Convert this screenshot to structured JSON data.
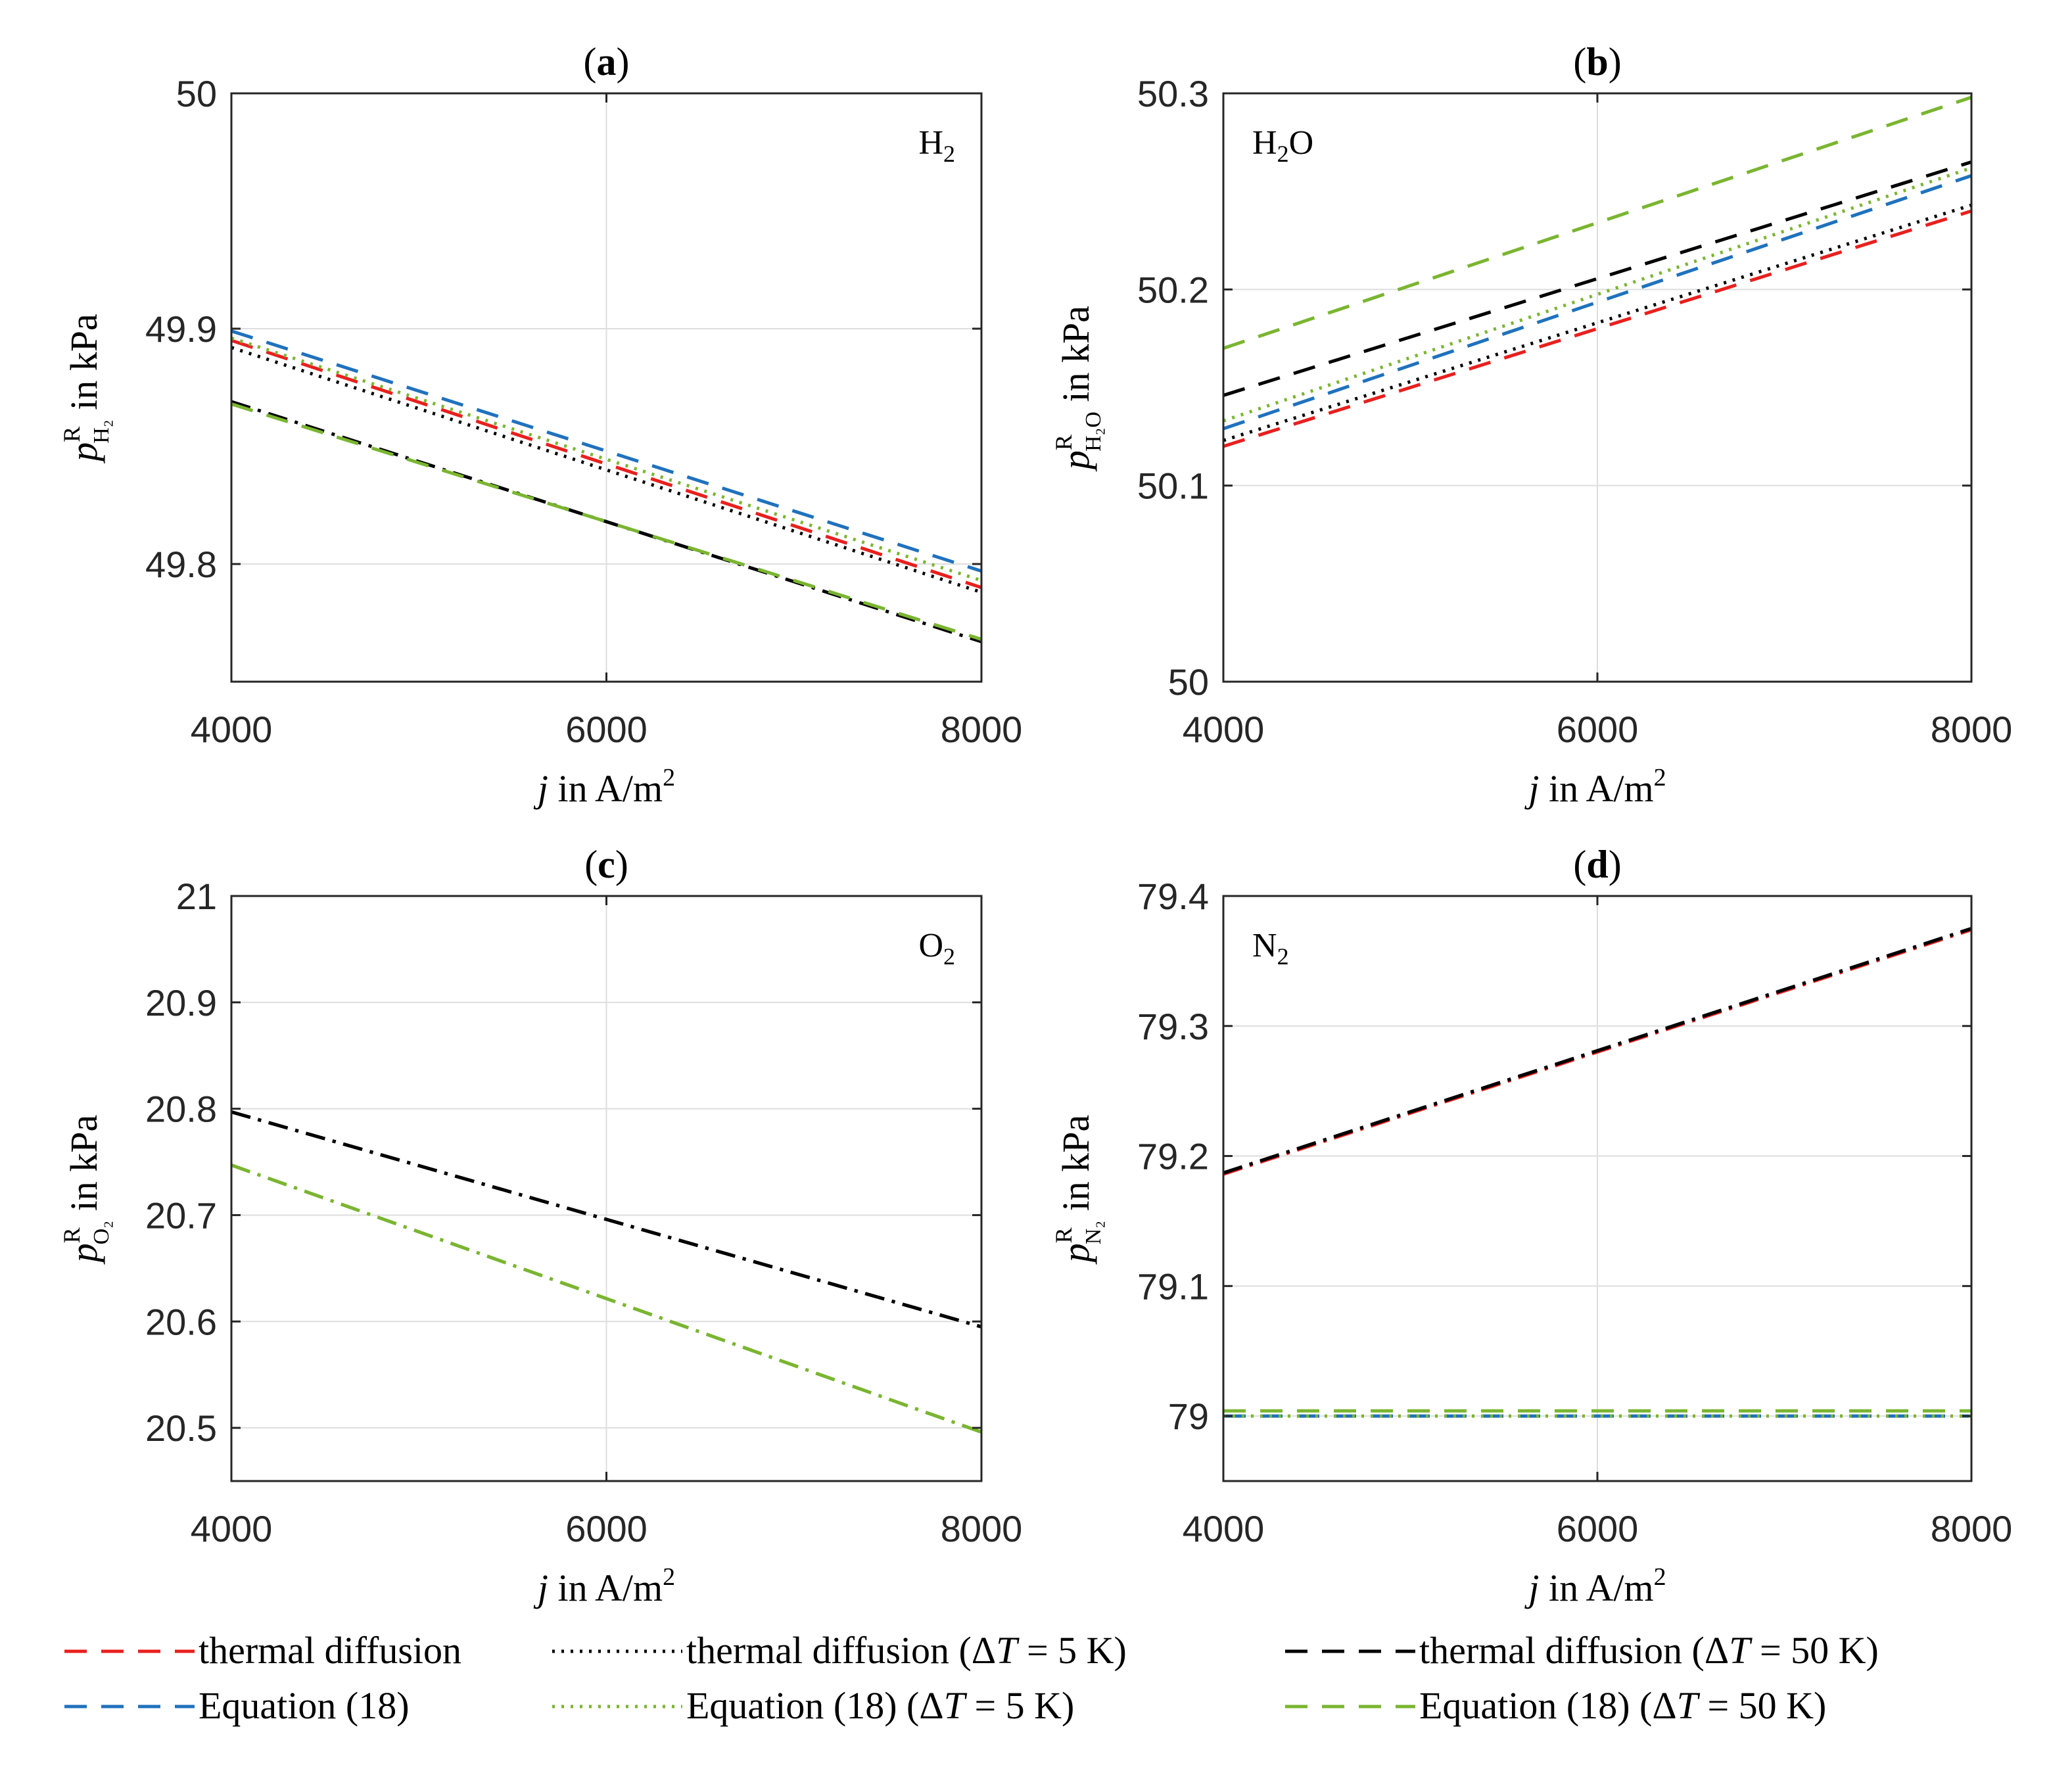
{
  "figure": {
    "colors": {
      "thermal_diffusion": "#e8201e",
      "equation18": "#1f72bd",
      "thermal_5K": "#000000",
      "eq18_5K": "#7ab530",
      "thermal_50K": "#000000",
      "eq18_50K": "#7ab530"
    }
  },
  "chart_data": [
    {
      "id": "a",
      "type": "line",
      "panel_label": "a",
      "species_label": "H",
      "species_subscript": "2",
      "species_suffix": "",
      "xlabel_var": "j",
      "xlabel_text": " in A/m",
      "xlabel_sup": "2",
      "ylabel_var": "p",
      "ylabel_sup": "R",
      "ylabel_sub": "H₂",
      "ylabel_text": " in kPa",
      "xlim": [
        4000,
        8000
      ],
      "ylim": [
        49.75,
        50.0
      ],
      "xticks": [
        4000,
        6000,
        8000
      ],
      "xtick_labels": [
        "4000",
        "6000",
        "8000"
      ],
      "yticks": [
        49.8,
        49.9,
        50.0
      ],
      "ytick_labels": [
        "49.8",
        "49.9",
        "50"
      ],
      "series": [
        {
          "key": "thermal_diffusion",
          "name": "thermal diffusion",
          "style": "dash",
          "x": [
            4000,
            8000
          ],
          "y": [
            49.895,
            49.79
          ]
        },
        {
          "key": "equation18",
          "name": "Equation (18)",
          "style": "dash",
          "x": [
            4000,
            8000
          ],
          "y": [
            49.899,
            49.797
          ]
        },
        {
          "key": "thermal_5K",
          "name": "thermal diffusion (ΔT = 5 K)",
          "style": "dot",
          "x": [
            4000,
            8000
          ],
          "y": [
            49.892,
            49.788
          ]
        },
        {
          "key": "eq18_5K",
          "name": "Equation (18) (ΔT = 5 K)",
          "style": "dot",
          "x": [
            4000,
            8000
          ],
          "y": [
            49.896,
            49.793
          ]
        },
        {
          "key": "thermal_50K",
          "name": "thermal diffusion (ΔT = 50 K)",
          "style": "dashdot",
          "x": [
            4000,
            8000
          ],
          "y": [
            49.869,
            49.767
          ]
        },
        {
          "key": "eq18_50K",
          "name": "Equation (18) (ΔT = 50 K)",
          "style": "dash",
          "x": [
            4000,
            8000
          ],
          "y": [
            49.868,
            49.768
          ]
        }
      ]
    },
    {
      "id": "b",
      "type": "line",
      "panel_label": "b",
      "species_label": "H",
      "species_subscript": "2",
      "species_suffix": "O",
      "xlabel_var": "j",
      "xlabel_text": " in A/m",
      "xlabel_sup": "2",
      "ylabel_var": "p",
      "ylabel_sup": "R",
      "ylabel_sub": "H₂O",
      "ylabel_text": " in kPa",
      "xlim": [
        4000,
        8000
      ],
      "ylim": [
        50.0,
        50.3
      ],
      "xticks": [
        4000,
        6000,
        8000
      ],
      "xtick_labels": [
        "4000",
        "6000",
        "8000"
      ],
      "yticks": [
        50.0,
        50.1,
        50.2,
        50.3
      ],
      "ytick_labels": [
        "50",
        "50.1",
        "50.2",
        "50.3"
      ],
      "series": [
        {
          "key": "thermal_diffusion",
          "name": "thermal diffusion",
          "style": "dash",
          "x": [
            4000,
            8000
          ],
          "y": [
            50.12,
            50.24
          ]
        },
        {
          "key": "equation18",
          "name": "Equation (18)",
          "style": "dash",
          "x": [
            4000,
            8000
          ],
          "y": [
            50.129,
            50.258
          ]
        },
        {
          "key": "thermal_5K",
          "name": "thermal diffusion (ΔT = 5 K)",
          "style": "dot",
          "x": [
            4000,
            8000
          ],
          "y": [
            50.123,
            50.243
          ]
        },
        {
          "key": "eq18_5K",
          "name": "Equation (18) (ΔT = 5 K)",
          "style": "dot",
          "x": [
            4000,
            8000
          ],
          "y": [
            50.133,
            50.262
          ]
        },
        {
          "key": "thermal_50K",
          "name": "thermal diffusion (ΔT = 50 K)",
          "style": "dash",
          "x": [
            4000,
            8000
          ],
          "y": [
            50.146,
            50.265
          ]
        },
        {
          "key": "eq18_50K",
          "name": "Equation (18) (ΔT = 50 K)",
          "style": "dash",
          "x": [
            4000,
            8000
          ],
          "y": [
            50.17,
            50.298
          ]
        }
      ]
    },
    {
      "id": "c",
      "type": "line",
      "panel_label": "c",
      "species_label": "O",
      "species_subscript": "2",
      "species_suffix": "",
      "xlabel_var": "j",
      "xlabel_text": " in A/m",
      "xlabel_sup": "2",
      "ylabel_var": "p",
      "ylabel_sup": "R",
      "ylabel_sub": "O₂",
      "ylabel_text": " in kPa",
      "xlim": [
        4000,
        8000
      ],
      "ylim": [
        20.45,
        21.0
      ],
      "xticks": [
        4000,
        6000,
        8000
      ],
      "xtick_labels": [
        "4000",
        "6000",
        "8000"
      ],
      "yticks": [
        20.5,
        20.6,
        20.7,
        20.8,
        20.9,
        21.0
      ],
      "ytick_labels": [
        "20.5",
        "20.6",
        "20.7",
        "20.8",
        "20.9",
        "21"
      ],
      "series": [
        {
          "key": "thermal_diffusion",
          "name": "thermal diffusion",
          "style": "dashdot",
          "x": [
            4000,
            8000
          ],
          "y": [
            20.797,
            20.595
          ]
        },
        {
          "key": "equation18",
          "name": "Equation (18)",
          "style": "dashdot",
          "x": [
            4000,
            8000
          ],
          "y": [
            20.797,
            20.595
          ]
        },
        {
          "key": "thermal_5K",
          "name": "thermal diffusion (ΔT = 5 K)",
          "style": "dashdot",
          "x": [
            4000,
            8000
          ],
          "y": [
            20.797,
            20.595
          ]
        },
        {
          "key": "eq18_5K",
          "name": "Equation (18) (ΔT = 5 K)",
          "style": "dashdot",
          "x": [
            4000,
            8000
          ],
          "y": [
            20.747,
            20.496
          ]
        },
        {
          "key": "thermal_50K",
          "name": "thermal diffusion (ΔT = 50 K)",
          "style": "dashdot",
          "x": [
            4000,
            8000
          ],
          "y": [
            20.797,
            20.595
          ]
        },
        {
          "key": "eq18_50K",
          "name": "Equation (18) (ΔT = 50 K)",
          "style": "dashdot",
          "x": [
            4000,
            8000
          ],
          "y": [
            20.747,
            20.496
          ]
        }
      ]
    },
    {
      "id": "d",
      "type": "line",
      "panel_label": "d",
      "species_label": "N",
      "species_subscript": "2",
      "species_suffix": "",
      "xlabel_var": "j",
      "xlabel_text": " in A/m",
      "xlabel_sup": "2",
      "ylabel_var": "p",
      "ylabel_sup": "R",
      "ylabel_sub": "N₂",
      "ylabel_text": " in kPa",
      "xlim": [
        4000,
        8000
      ],
      "ylim": [
        78.95,
        79.4
      ],
      "xticks": [
        4000,
        6000,
        8000
      ],
      "xtick_labels": [
        "4000",
        "6000",
        "8000"
      ],
      "yticks": [
        79.0,
        79.1,
        79.2,
        79.3,
        79.4
      ],
      "ytick_labels": [
        "79",
        "79.1",
        "79.2",
        "79.3",
        "79.4"
      ],
      "series": [
        {
          "key": "thermal_diffusion",
          "name": "thermal diffusion",
          "style": "dashdot",
          "x": [
            4000,
            8000
          ],
          "y": [
            79.186,
            79.374
          ]
        },
        {
          "key": "equation18",
          "name": "Equation (18)",
          "style": "dash",
          "x": [
            4000,
            8000
          ],
          "y": [
            79.0,
            79.0
          ]
        },
        {
          "key": "thermal_5K",
          "name": "thermal diffusion (ΔT = 5 K)",
          "style": "dashdot",
          "x": [
            4000,
            8000
          ],
          "y": [
            79.187,
            79.375
          ]
        },
        {
          "key": "eq18_5K",
          "name": "Equation (18) (ΔT = 5 K)",
          "style": "dot",
          "x": [
            4000,
            8000
          ],
          "y": [
            79.0,
            79.0
          ]
        },
        {
          "key": "thermal_50K",
          "name": "thermal diffusion (ΔT = 50 K)",
          "style": "dashdot",
          "x": [
            4000,
            8000
          ],
          "y": [
            79.187,
            79.375
          ]
        },
        {
          "key": "eq18_50K",
          "name": "Equation (18) (ΔT = 50 K)",
          "style": "dash",
          "x": [
            4000,
            8000
          ],
          "y": [
            79.004,
            79.004
          ]
        }
      ]
    }
  ],
  "legend": {
    "entries": [
      {
        "key": "thermal_diffusion",
        "style": "dash",
        "label": "thermal diffusion",
        "dt": ""
      },
      {
        "key": "thermal_5K",
        "style": "dot",
        "label": "thermal diffusion",
        "dt": "5"
      },
      {
        "key": "thermal_50K",
        "style": "dash",
        "label": "thermal diffusion",
        "dt": "50"
      },
      {
        "key": "equation18",
        "style": "dash",
        "label": "Equation (18)",
        "dt": ""
      },
      {
        "key": "eq18_5K",
        "style": "dot",
        "label": "Equation (18)",
        "dt": "5"
      },
      {
        "key": "eq18_50K",
        "style": "dash",
        "label": "Equation (18)",
        "dt": "50"
      }
    ],
    "delta_symbol": "Δ",
    "t_symbol": "T",
    "unit": "K"
  }
}
